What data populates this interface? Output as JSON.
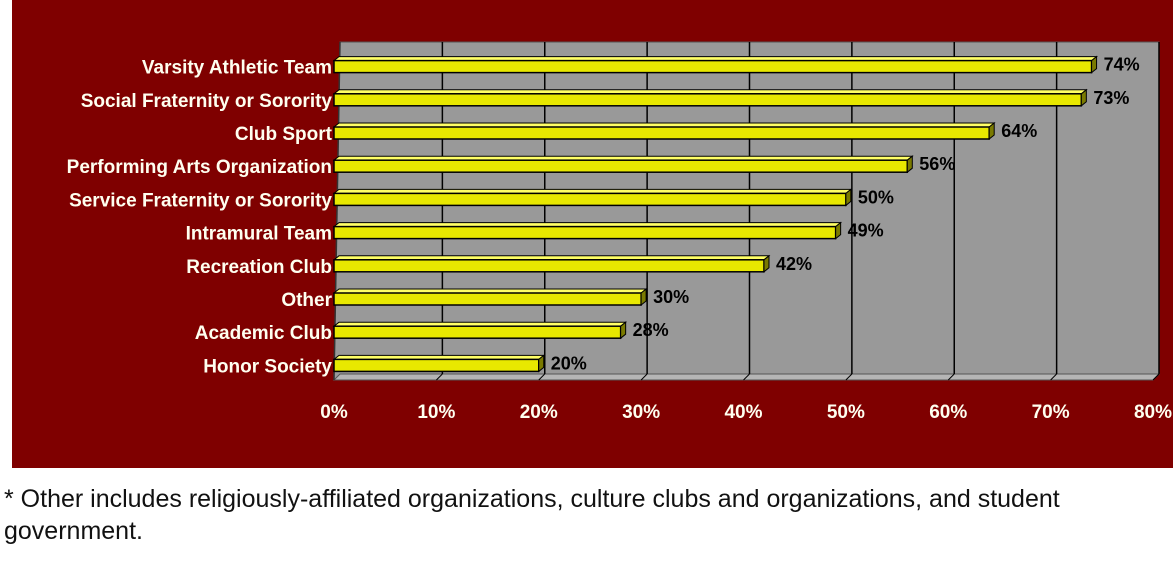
{
  "chart_data": {
    "type": "bar",
    "orientation": "horizontal",
    "categories": [
      "Varsity Athletic Team",
      "Social Fraternity or Sorority",
      "Club Sport",
      "Performing Arts Organization",
      "Service Fraternity or Sorority",
      "Intramural Team",
      "Recreation Club",
      "Other",
      "Academic Club",
      "Honor Society"
    ],
    "values": [
      74,
      73,
      64,
      56,
      50,
      49,
      42,
      30,
      28,
      20
    ],
    "value_labels": [
      "74%",
      "73%",
      "64%",
      "56%",
      "50%",
      "49%",
      "42%",
      "30%",
      "28%",
      "20%"
    ],
    "x_ticks": [
      "0%",
      "10%",
      "20%",
      "30%",
      "40%",
      "50%",
      "60%",
      "70%",
      "80%"
    ],
    "xlim": [
      0,
      80
    ],
    "grid": true,
    "legend": "none",
    "colors": {
      "background": "#7f0000",
      "plot_area": "#999999",
      "bar": "#e8e800",
      "bar_highlight": "#ffff66",
      "bar_side": "#7a7a00",
      "gridline": "#000000",
      "category_text": "#fffff0",
      "tick_text": "#fffff0",
      "value_text": "#000000"
    }
  },
  "footnote": "* Other includes religiously-affiliated organizations, culture clubs and organizations, and student government."
}
